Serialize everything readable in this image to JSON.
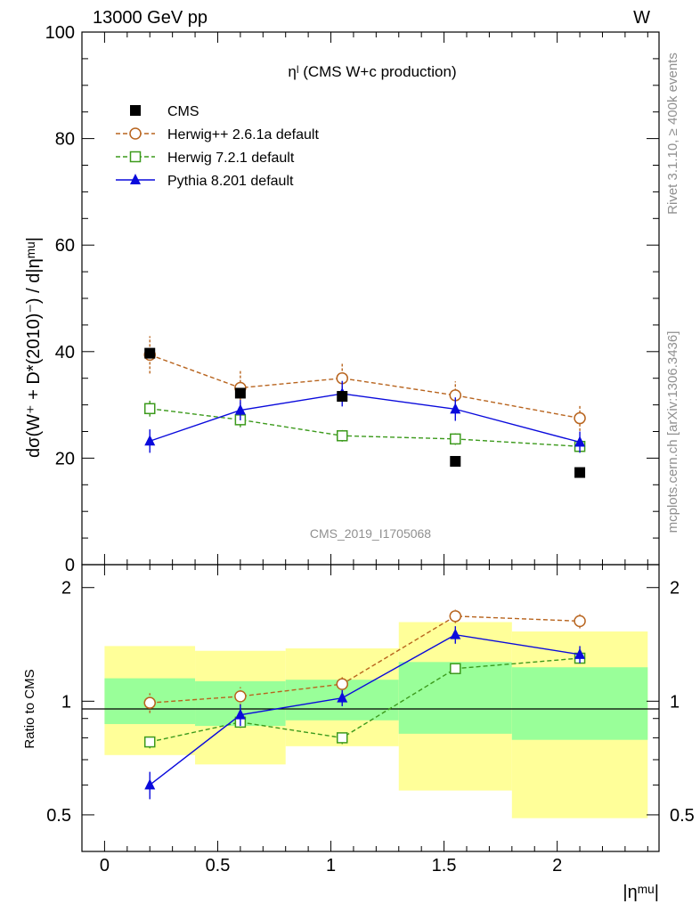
{
  "header": {
    "left": "13000 GeV pp",
    "right": "W"
  },
  "side_labels": {
    "rivet": "Rivet 3.1.10, ≥ 400k events",
    "mcplots": "mcplots.cern.ch [arXiv:1306.3436]"
  },
  "colors": {
    "cms": "#000000",
    "herwigpp": "#b8641e",
    "herwig7": "#3c9a1c",
    "pythia": "#0a0adc",
    "band_outer": "#ffff99",
    "band_inner": "#99ff99"
  },
  "chart_data": [
    {
      "type": "scatter",
      "title": "ηˡ (CMS W+c production)",
      "watermark": "CMS_2019_I1705068",
      "ylabel": "dσ(W⁺ + D*(2010)⁻) / d|ηᵐᵘ|",
      "xlim": [
        -0.1,
        2.45
      ],
      "ylim": [
        0,
        100
      ],
      "yticks": [
        "0",
        "20",
        "40",
        "60",
        "80",
        "100"
      ],
      "x": [
        0.2,
        0.6,
        1.05,
        1.55,
        2.1
      ],
      "bins": [
        [
          0,
          0.4
        ],
        [
          0.4,
          0.8
        ],
        [
          0.8,
          1.3
        ],
        [
          1.3,
          1.8
        ],
        [
          1.8,
          2.4
        ]
      ],
      "series": [
        {
          "name": "CMS",
          "marker": "filled-square",
          "values": [
            39.7,
            32.2,
            31.6,
            19.4,
            17.3
          ]
        },
        {
          "name": "Herwig++ 2.6.1a default",
          "marker": "open-circle",
          "line": "dashed",
          "values": [
            39.4,
            33.2,
            35.0,
            31.8,
            27.5
          ],
          "errors": [
            3.5,
            3.2,
            2.8,
            2.6,
            2.4
          ]
        },
        {
          "name": "Herwig 7.2.1 default",
          "marker": "open-square",
          "line": "dashed",
          "values": [
            29.3,
            27.2,
            24.2,
            23.6,
            22.2
          ],
          "errors": [
            1.5,
            1.4,
            1.1,
            1.1,
            1.0
          ]
        },
        {
          "name": "Pythia 8.201 default",
          "marker": "filled-triangle",
          "line": "solid",
          "values": [
            23.2,
            29.0,
            32.1,
            29.2,
            23.0
          ],
          "errors": [
            2.2,
            1.9,
            2.4,
            2.2,
            2.0
          ]
        }
      ]
    },
    {
      "type": "scatter",
      "ylabel": "Ratio to CMS",
      "xlabel": "|ηᵐᵘ|",
      "log_y": true,
      "ylim": [
        0.4,
        2.3
      ],
      "yticks": [
        "0.5",
        "1",
        "2"
      ],
      "xticks": [
        "0",
        "0.5",
        "1",
        "1.5",
        "2"
      ],
      "bands": [
        {
          "x": [
            0,
            0.4
          ],
          "inner": [
            0.87,
            1.15
          ],
          "outer": [
            0.72,
            1.4
          ]
        },
        {
          "x": [
            0.4,
            0.8
          ],
          "inner": [
            0.86,
            1.13
          ],
          "outer": [
            0.68,
            1.36
          ]
        },
        {
          "x": [
            0.8,
            1.3
          ],
          "inner": [
            0.89,
            1.14
          ],
          "outer": [
            0.76,
            1.38
          ]
        },
        {
          "x": [
            1.3,
            1.8
          ],
          "inner": [
            0.82,
            1.27
          ],
          "outer": [
            0.58,
            1.62
          ]
        },
        {
          "x": [
            1.8,
            2.4
          ],
          "inner": [
            0.79,
            1.23
          ],
          "outer": [
            0.49,
            1.53
          ]
        }
      ],
      "series": [
        {
          "name": "Herwig++ 2.6.1a default",
          "values": [
            0.99,
            1.03,
            1.11,
            1.68,
            1.63
          ],
          "errors": [
            0.06,
            0.06,
            0.06,
            0.07,
            0.07
          ]
        },
        {
          "name": "Herwig 7.2.1 default",
          "values": [
            0.78,
            0.88,
            0.8,
            1.22,
            1.3
          ],
          "errors": [
            0.03,
            0.03,
            0.03,
            0.03,
            0.04
          ]
        },
        {
          "name": "Pythia 8.201 default",
          "values": [
            0.6,
            0.92,
            1.02,
            1.5,
            1.33
          ],
          "errors": [
            0.05,
            0.06,
            0.05,
            0.08,
            0.07
          ]
        }
      ]
    }
  ]
}
